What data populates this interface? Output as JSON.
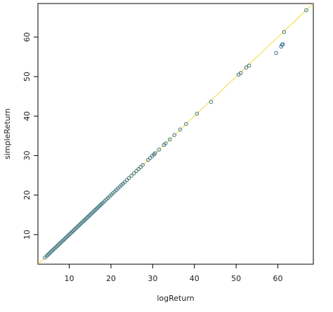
{
  "chart_data": {
    "type": "scatter",
    "title": "",
    "xlabel": "logReturn",
    "ylabel": "simpleReturn",
    "xlim": [
      2.5,
      68.5
    ],
    "ylim": [
      2.5,
      68.5
    ],
    "x_ticks": [
      10,
      20,
      30,
      40,
      50,
      60
    ],
    "y_ticks": [
      10,
      20,
      30,
      40,
      50,
      60
    ],
    "x_tick_labels": [
      "10",
      "20",
      "30",
      "40",
      "50",
      "60"
    ],
    "y_tick_labels": [
      "10",
      "20",
      "30",
      "40",
      "50",
      "60"
    ],
    "grid": false,
    "reference_line": {
      "slope": 1,
      "intercept": 0,
      "color": "#f2dc3c"
    },
    "point_color": "#3b7592",
    "series": [
      {
        "x": [
          4.2,
          4.6,
          4.9,
          5.2,
          5.5,
          5.8,
          6.1,
          6.4,
          6.7,
          7.0,
          7.3,
          7.6,
          7.9,
          8.2,
          8.5,
          8.8,
          9.1,
          9.4,
          9.7,
          10.0,
          10.3,
          10.6,
          10.9,
          11.2,
          11.5,
          11.8,
          12.1,
          12.4,
          12.7,
          13.0,
          13.3,
          13.6,
          13.9,
          14.2,
          14.5,
          14.8,
          15.1,
          15.4,
          15.7,
          16.0,
          16.3,
          16.6,
          16.9,
          17.2,
          17.5,
          17.8,
          18.1,
          18.5,
          18.9,
          19.3,
          19.7,
          20.1,
          20.5,
          20.9,
          21.3,
          21.7,
          22.1,
          22.5,
          22.9,
          23.3,
          23.8,
          24.3,
          24.9,
          25.5,
          26.1,
          26.6,
          27.1,
          27.6,
          28.9,
          29.4,
          29.9,
          30.3,
          30.6,
          31.5,
          32.7,
          33.1,
          34.1,
          35.2,
          36.6,
          38.0,
          40.6,
          44.0,
          50.6,
          51.1,
          52.4,
          53.1,
          59.6,
          60.8,
          61.0,
          61.2,
          61.5,
          66.8
        ],
        "y": [
          4.2,
          4.6,
          4.9,
          5.2,
          5.5,
          5.8,
          6.1,
          6.4,
          6.7,
          7.0,
          7.3,
          7.6,
          7.9,
          8.2,
          8.5,
          8.8,
          9.1,
          9.4,
          9.7,
          10.0,
          10.3,
          10.6,
          10.9,
          11.2,
          11.5,
          11.8,
          12.1,
          12.4,
          12.7,
          13.0,
          13.3,
          13.6,
          13.9,
          14.2,
          14.5,
          14.8,
          15.1,
          15.4,
          15.7,
          16.0,
          16.3,
          16.6,
          16.9,
          17.2,
          17.5,
          17.8,
          18.1,
          18.5,
          18.9,
          19.3,
          19.7,
          20.1,
          20.5,
          20.9,
          21.3,
          21.7,
          22.1,
          22.5,
          22.9,
          23.3,
          23.8,
          24.3,
          24.9,
          25.5,
          26.1,
          26.6,
          27.1,
          27.6,
          28.9,
          29.4,
          29.9,
          30.3,
          30.6,
          31.5,
          32.7,
          33.1,
          34.1,
          35.2,
          36.6,
          38.0,
          40.6,
          43.6,
          50.5,
          50.9,
          52.3,
          52.8,
          56.0,
          57.6,
          58.1,
          58.2,
          61.3,
          66.8
        ]
      }
    ]
  }
}
